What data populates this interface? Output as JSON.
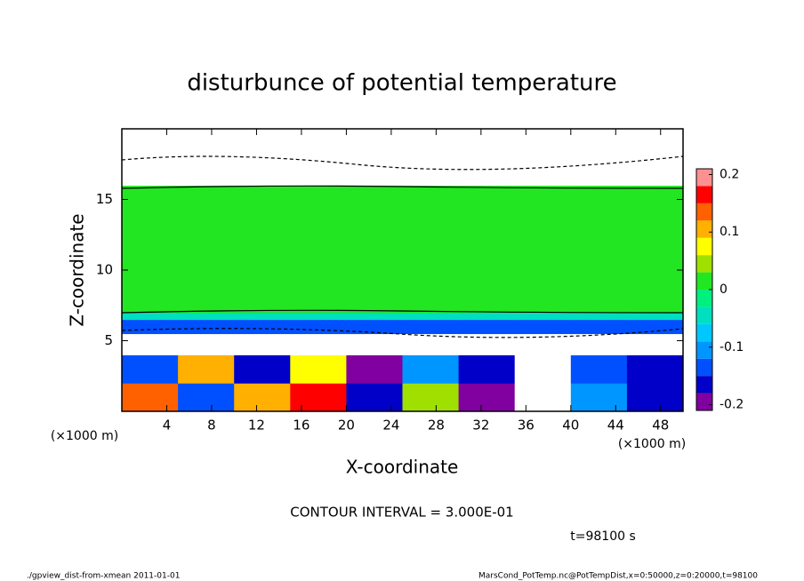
{
  "chart_data": {
    "type": "heatmap",
    "title": "disturbunce of potential temperature",
    "xlabel": "X-coordinate",
    "ylabel": "Z-coordinate",
    "x_unit_label": "(×1000 m)",
    "y_unit_label": "(×1000 m)",
    "contour_interval": "CONTOUR INTERVAL = 3.000E-01",
    "time_label": "t=98100 s",
    "footer_left": "./gpview_dist-from-xmean  2011-01-01",
    "footer_right": "MarsCond_PotTemp.nc@PotTempDist,x=0:50000,z=0:20000,t=98100",
    "xlim": [
      0,
      50
    ],
    "ylim": [
      0,
      20
    ],
    "xticks": [
      4,
      8,
      12,
      16,
      20,
      24,
      28,
      32,
      36,
      40,
      44,
      48
    ],
    "yticks": [
      5,
      10,
      15
    ],
    "x_edges": [
      0,
      5,
      10,
      15,
      20,
      25,
      30,
      35,
      40,
      45,
      50
    ],
    "z_edges": [
      0,
      2,
      4,
      5.5,
      6.5,
      7,
      16,
      20
    ],
    "values": [
      [
        0.15,
        -0.12,
        0.1,
        0.18,
        -0.15,
        0.05,
        -0.18,
        -0.25,
        -0.1,
        -0.16
      ],
      [
        -0.12,
        0.12,
        -0.15,
        0.08,
        -0.18,
        -0.1,
        -0.15,
        -0.25,
        -0.12,
        -0.15
      ],
      [
        -0.25,
        -0.25,
        -0.25,
        -0.25,
        -0.25,
        -0.25,
        -0.25,
        -0.25,
        -0.25,
        -0.25
      ],
      [
        -0.14,
        -0.14,
        -0.14,
        -0.14,
        -0.14,
        -0.14,
        -0.14,
        -0.14,
        -0.14,
        -0.14
      ],
      [
        -0.05,
        -0.05,
        -0.05,
        -0.05,
        -0.05,
        -0.05,
        -0.05,
        -0.05,
        -0.05,
        -0.05
      ],
      [
        0.01,
        0.01,
        0.01,
        0.01,
        0.01,
        0.01,
        0.01,
        0.01,
        0.01,
        0.01
      ],
      [
        0.25,
        0.25,
        0.25,
        0.25,
        0.25,
        0.25,
        0.25,
        0.25,
        0.25,
        0.25
      ]
    ],
    "levels": [
      -0.21,
      -0.18,
      -0.15,
      -0.12,
      -0.09,
      -0.06,
      -0.03,
      0,
      0.03,
      0.06,
      0.09,
      0.12,
      0.15,
      0.18,
      0.21
    ],
    "colors": [
      "#8000a0",
      "#0000c8",
      "#0050ff",
      "#0096ff",
      "#00c8ff",
      "#00e0c0",
      "#00f080",
      "#22e622",
      "#a0e000",
      "#ffff00",
      "#ffb000",
      "#ff6000",
      "#ff0000",
      "#ff9090"
    ],
    "cticks": [
      -0.2,
      -0.1,
      0,
      0.1,
      0.2
    ]
  }
}
